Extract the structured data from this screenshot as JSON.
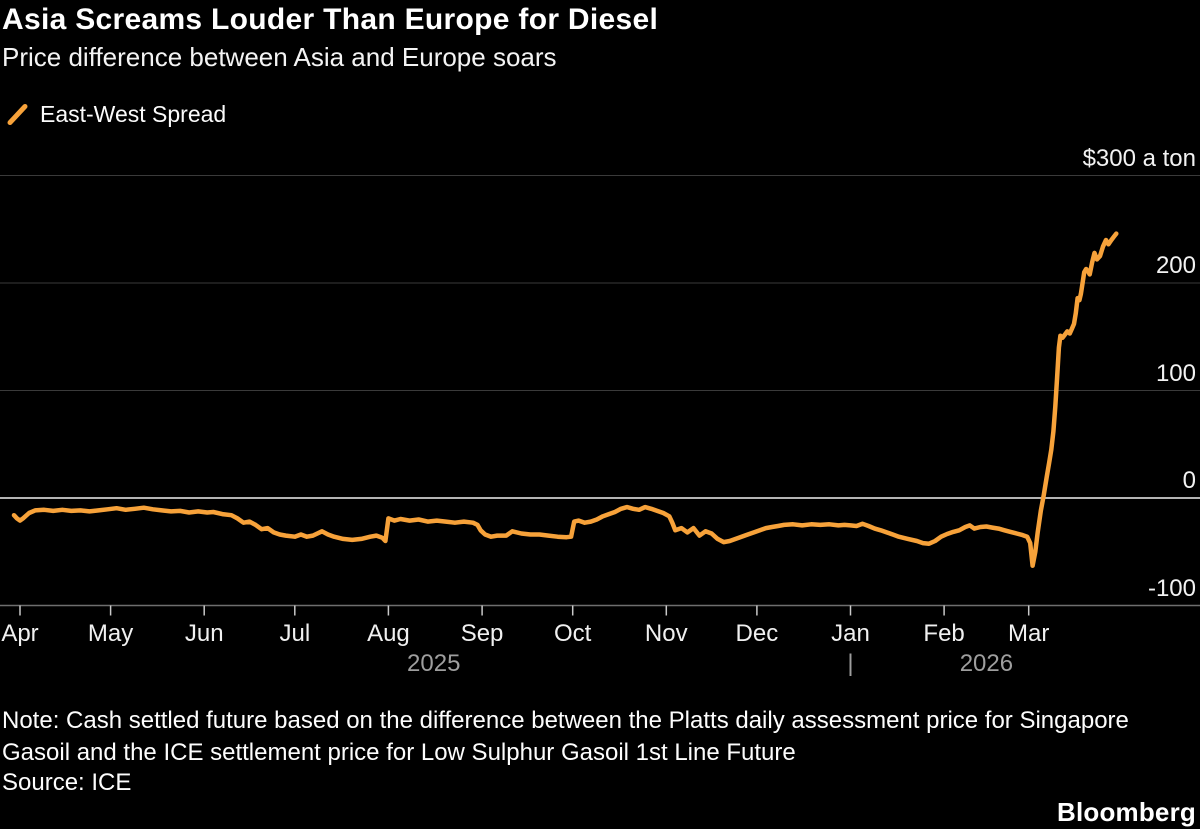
{
  "header": {
    "title": "Asia Screams Louder Than Europe for Diesel",
    "subtitle": "Price difference between Asia and Europe soars"
  },
  "legend": {
    "label": "East-West Spread"
  },
  "colors": {
    "series": "#F7A23A",
    "gridline": "#3a3a3a",
    "zero_line": "#efefef",
    "axis_line": "#6e6e6e",
    "tick": "#c9c9c9",
    "year_label": "#9e9e9e"
  },
  "chart_data": {
    "type": "line",
    "title": "Asia Screams Louder Than Europe for Diesel",
    "xlabel": "",
    "ylabel": "$ a ton",
    "ylim": [
      -100,
      300
    ],
    "grid": "horizontal",
    "legend_position": "top-left",
    "y_ticks": [
      {
        "value": 300,
        "label": "$300 a ton"
      },
      {
        "value": 200,
        "label": "200"
      },
      {
        "value": 100,
        "label": "100"
      },
      {
        "value": 0,
        "label": "0"
      },
      {
        "value": -100,
        "label": "-100"
      }
    ],
    "x_ticks": [
      {
        "label": "Apr",
        "day": 0
      },
      {
        "label": "May",
        "day": 30
      },
      {
        "label": "Jun",
        "day": 61
      },
      {
        "label": "Jul",
        "day": 91
      },
      {
        "label": "Aug",
        "day": 122
      },
      {
        "label": "Sep",
        "day": 153
      },
      {
        "label": "Oct",
        "day": 183
      },
      {
        "label": "Nov",
        "day": 214
      },
      {
        "label": "Dec",
        "day": 244
      },
      {
        "label": "Jan",
        "day": 275
      },
      {
        "label": "Feb",
        "day": 306
      },
      {
        "label": "Mar",
        "day": 334
      }
    ],
    "x_year_labels": [
      {
        "label": "2025",
        "day": 137
      },
      {
        "label": "|",
        "day": 275
      },
      {
        "label": "2026",
        "day": 320
      }
    ],
    "series": [
      {
        "name": "East-West Spread",
        "color": "#F7A23A",
        "points": [
          [
            -2,
            -16
          ],
          [
            -1,
            -19
          ],
          [
            0,
            -21
          ],
          [
            1,
            -19
          ],
          [
            3,
            -14
          ],
          [
            5,
            -11.5
          ],
          [
            8,
            -11
          ],
          [
            11,
            -12
          ],
          [
            14,
            -11
          ],
          [
            17,
            -12
          ],
          [
            20,
            -11.5
          ],
          [
            23,
            -12.5
          ],
          [
            26,
            -11.5
          ],
          [
            29,
            -10.5
          ],
          [
            32,
            -9.5
          ],
          [
            35,
            -11
          ],
          [
            38,
            -10
          ],
          [
            41,
            -9
          ],
          [
            44,
            -10.5
          ],
          [
            47,
            -11.5
          ],
          [
            50,
            -12.5
          ],
          [
            53,
            -12
          ],
          [
            56,
            -13.5
          ],
          [
            59,
            -12.5
          ],
          [
            62,
            -13.5
          ],
          [
            64,
            -13
          ],
          [
            67,
            -15
          ],
          [
            70,
            -16
          ],
          [
            72,
            -19
          ],
          [
            74,
            -23
          ],
          [
            76,
            -22
          ],
          [
            78,
            -25
          ],
          [
            80,
            -29
          ],
          [
            82,
            -28
          ],
          [
            84,
            -32
          ],
          [
            86,
            -34
          ],
          [
            88,
            -35
          ],
          [
            91,
            -36
          ],
          [
            93,
            -34
          ],
          [
            95,
            -36
          ],
          [
            97,
            -35
          ],
          [
            100,
            -31
          ],
          [
            102,
            -34
          ],
          [
            104,
            -36
          ],
          [
            107,
            -38
          ],
          [
            110,
            -39
          ],
          [
            113,
            -38
          ],
          [
            116,
            -36
          ],
          [
            118,
            -35
          ],
          [
            120,
            -37
          ],
          [
            121,
            -40
          ],
          [
            122,
            -19
          ],
          [
            124,
            -21
          ],
          [
            126,
            -19.5
          ],
          [
            129,
            -21
          ],
          [
            132,
            -20
          ],
          [
            135,
            -22
          ],
          [
            138,
            -21
          ],
          [
            141,
            -22
          ],
          [
            144,
            -23
          ],
          [
            147,
            -22
          ],
          [
            150,
            -23
          ],
          [
            151.5,
            -25
          ],
          [
            152.5,
            -30
          ],
          [
            154,
            -34
          ],
          [
            156,
            -36
          ],
          [
            158,
            -35
          ],
          [
            161,
            -35
          ],
          [
            163,
            -31
          ],
          [
            166,
            -33
          ],
          [
            169,
            -34
          ],
          [
            172,
            -34
          ],
          [
            175,
            -35
          ],
          [
            178,
            -36
          ],
          [
            181,
            -36.5
          ],
          [
            182.5,
            -36
          ],
          [
            183.5,
            -22
          ],
          [
            185,
            -21
          ],
          [
            187,
            -23
          ],
          [
            189,
            -22
          ],
          [
            191,
            -20
          ],
          [
            193,
            -17
          ],
          [
            195,
            -15
          ],
          [
            197,
            -13
          ],
          [
            199,
            -10
          ],
          [
            201,
            -8.5
          ],
          [
            203,
            -10
          ],
          [
            205,
            -11
          ],
          [
            207,
            -8.5
          ],
          [
            209,
            -10
          ],
          [
            211,
            -12
          ],
          [
            213,
            -14
          ],
          [
            215,
            -17
          ],
          [
            216,
            -23
          ],
          [
            217,
            -30
          ],
          [
            219,
            -28
          ],
          [
            221,
            -32
          ],
          [
            223,
            -28
          ],
          [
            225,
            -35
          ],
          [
            227,
            -31
          ],
          [
            229,
            -33
          ],
          [
            231,
            -38
          ],
          [
            233,
            -41
          ],
          [
            235,
            -40
          ],
          [
            238,
            -37
          ],
          [
            241,
            -34
          ],
          [
            243,
            -32
          ],
          [
            245,
            -30
          ],
          [
            247,
            -28
          ],
          [
            249,
            -27
          ],
          [
            251,
            -26
          ],
          [
            253,
            -25
          ],
          [
            256,
            -24.5
          ],
          [
            259,
            -25.5
          ],
          [
            262,
            -24.5
          ],
          [
            265,
            -25
          ],
          [
            268,
            -24.5
          ],
          [
            271,
            -25.5
          ],
          [
            273,
            -25
          ],
          [
            275,
            -25.5
          ],
          [
            277,
            -26
          ],
          [
            279,
            -24
          ],
          [
            281,
            -26
          ],
          [
            283,
            -28.5
          ],
          [
            285,
            -30
          ],
          [
            287,
            -32
          ],
          [
            289,
            -34
          ],
          [
            291,
            -36
          ],
          [
            294,
            -38
          ],
          [
            297,
            -40
          ],
          [
            299,
            -42
          ],
          [
            301,
            -42.5
          ],
          [
            303,
            -40
          ],
          [
            305,
            -36
          ],
          [
            307,
            -33.5
          ],
          [
            309,
            -31.5
          ],
          [
            311,
            -30
          ],
          [
            313,
            -27
          ],
          [
            314.5,
            -25.5
          ],
          [
            316,
            -28.5
          ],
          [
            318,
            -27
          ],
          [
            320,
            -26.5
          ],
          [
            322,
            -27.5
          ],
          [
            324,
            -28.5
          ],
          [
            326,
            -30
          ],
          [
            328,
            -31.5
          ],
          [
            330,
            -33
          ],
          [
            332,
            -34.5
          ],
          [
            333.5,
            -36
          ],
          [
            334.5,
            -42
          ],
          [
            335.3,
            -63
          ],
          [
            336.2,
            -50
          ],
          [
            337,
            -32
          ],
          [
            338,
            -12
          ],
          [
            339,
            3
          ],
          [
            340,
            20
          ],
          [
            340.8,
            33
          ],
          [
            341.5,
            45
          ],
          [
            342.2,
            62
          ],
          [
            342.8,
            85
          ],
          [
            343.4,
            112
          ],
          [
            344,
            140
          ],
          [
            344.5,
            151
          ],
          [
            345.2,
            149
          ],
          [
            346,
            152
          ],
          [
            346.8,
            155
          ],
          [
            347.6,
            153
          ],
          [
            348.4,
            158
          ],
          [
            349,
            162
          ],
          [
            349.6,
            172
          ],
          [
            350.2,
            186
          ],
          [
            350.8,
            184
          ],
          [
            351.3,
            190
          ],
          [
            351.8,
            199
          ],
          [
            352.4,
            210
          ],
          [
            353,
            213
          ],
          [
            353.6,
            211
          ],
          [
            354.2,
            208
          ],
          [
            355,
            219
          ],
          [
            355.8,
            228
          ],
          [
            356.6,
            222
          ],
          [
            357.6,
            225
          ],
          [
            358.6,
            234
          ],
          [
            359.6,
            240
          ],
          [
            360.4,
            236
          ],
          [
            361.4,
            240
          ],
          [
            362.2,
            243
          ],
          [
            363,
            246
          ]
        ]
      }
    ]
  },
  "footer": {
    "note_lines": [
      "Note: Cash settled future based on the difference between the Platts daily assessment price for Singapore",
      "Gasoil and the ICE settlement price for Low Sulphur Gasoil 1st Line Future"
    ],
    "source": "Source: ICE",
    "brand": "Bloomberg"
  }
}
